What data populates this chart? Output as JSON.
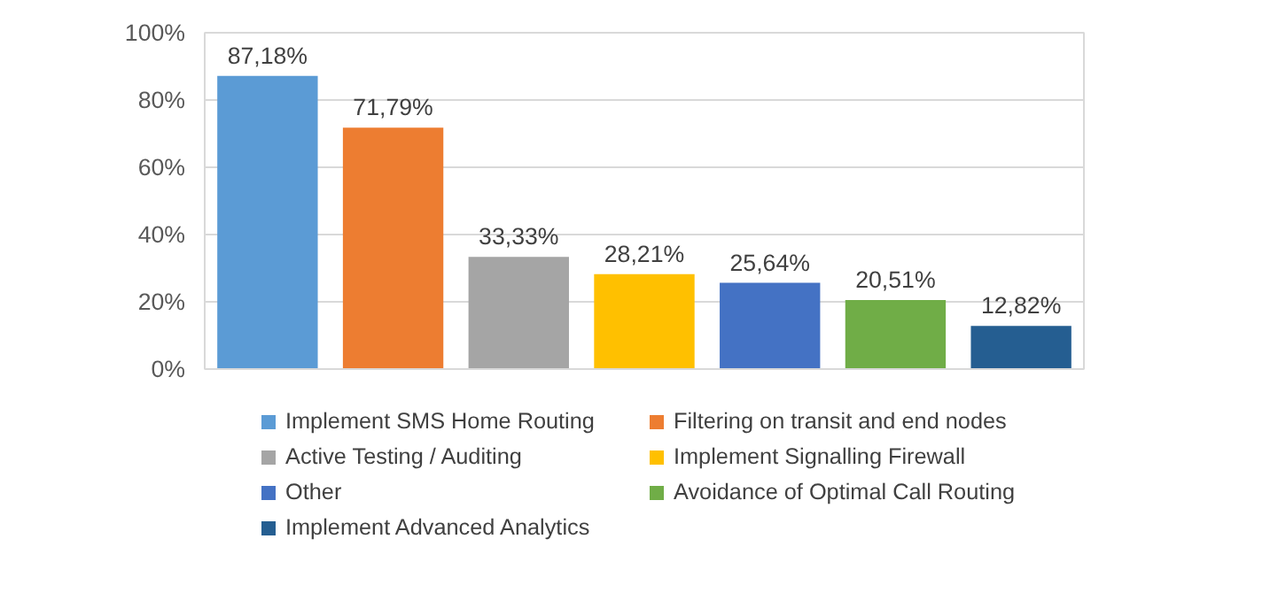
{
  "chart_data": {
    "type": "bar",
    "categories": [
      null,
      null,
      null,
      null,
      null,
      null,
      null
    ],
    "series": [
      {
        "name": "Implement SMS Home Routing",
        "color": "#5b9bd5",
        "values": [
          87.18,
          null,
          null,
          null,
          null,
          null,
          null
        ],
        "value_labels": [
          "87,18%",
          null,
          null,
          null,
          null,
          null,
          null
        ]
      },
      {
        "name": "Filtering on transit and end nodes",
        "color": "#ed7d31",
        "values": [
          null,
          71.79,
          null,
          null,
          null,
          null,
          null
        ],
        "value_labels": [
          null,
          "71,79%",
          null,
          null,
          null,
          null,
          null
        ]
      },
      {
        "name": "Active Testing / Auditing",
        "color": "#a5a5a5",
        "values": [
          null,
          null,
          33.33,
          null,
          null,
          null,
          null
        ],
        "value_labels": [
          null,
          null,
          "33,33%",
          null,
          null,
          null,
          null
        ]
      },
      {
        "name": "Implement Signalling Firewall",
        "color": "#ffc000",
        "values": [
          null,
          null,
          null,
          28.21,
          null,
          null,
          null
        ],
        "value_labels": [
          null,
          null,
          null,
          "28,21%",
          null,
          null,
          null
        ]
      },
      {
        "name": "Other",
        "color": "#4472c4",
        "values": [
          null,
          null,
          null,
          null,
          25.64,
          null,
          null
        ],
        "value_labels": [
          null,
          null,
          null,
          null,
          "25,64%",
          null,
          null
        ]
      },
      {
        "name": "Avoidance of Optimal Call Routing",
        "color": "#70ad47",
        "values": [
          null,
          null,
          null,
          null,
          null,
          20.51,
          null
        ],
        "value_labels": [
          null,
          null,
          null,
          null,
          null,
          "20,51%",
          null
        ]
      },
      {
        "name": "Implement Advanced Analytics",
        "color": "#255e91",
        "values": [
          null,
          null,
          null,
          null,
          null,
          null,
          12.82
        ],
        "value_labels": [
          null,
          null,
          null,
          null,
          null,
          null,
          "12,82%"
        ]
      }
    ],
    "ylim": [
      0,
      100
    ],
    "yticks": [
      {
        "value": 0,
        "label": "0%"
      },
      {
        "value": 20,
        "label": "20%"
      },
      {
        "value": 40,
        "label": "40%"
      },
      {
        "value": 60,
        "label": "60%"
      },
      {
        "value": 80,
        "label": "80%"
      },
      {
        "value": 100,
        "label": "100%"
      }
    ],
    "grid": "y",
    "legend": "bottom",
    "tick_labels": "y"
  }
}
